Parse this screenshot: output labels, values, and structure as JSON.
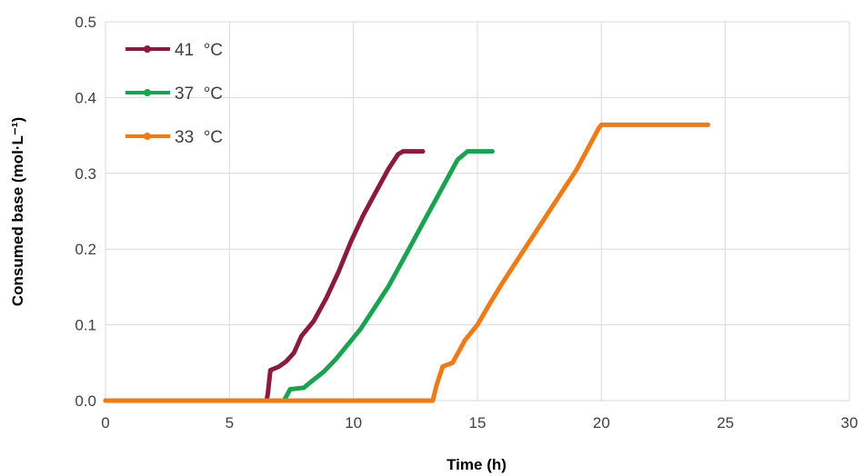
{
  "chart_data": {
    "type": "line",
    "title": "",
    "xlabel": "Time (h)",
    "ylabel": "Consumed base (mol·L⁻¹)",
    "xlim": [
      0,
      30
    ],
    "ylim": [
      0,
      0.5
    ],
    "x_ticks": [
      "0",
      "5",
      "10",
      "15",
      "20",
      "25",
      "30"
    ],
    "y_ticks": [
      "0.0",
      "0.1",
      "0.2",
      "0.3",
      "0.4",
      "0.5"
    ],
    "grid": true,
    "legend_position": "top-left",
    "series": [
      {
        "name": "41  °C",
        "color": "#8B1A3C",
        "points": [
          [
            0,
            0
          ],
          [
            6.5,
            0
          ],
          [
            6.55,
            0.01
          ],
          [
            6.65,
            0.04
          ],
          [
            7.0,
            0.045
          ],
          [
            7.3,
            0.052
          ],
          [
            7.6,
            0.063
          ],
          [
            7.9,
            0.085
          ],
          [
            8.4,
            0.105
          ],
          [
            8.9,
            0.135
          ],
          [
            9.4,
            0.17
          ],
          [
            9.9,
            0.21
          ],
          [
            10.4,
            0.245
          ],
          [
            10.9,
            0.275
          ],
          [
            11.4,
            0.305
          ],
          [
            11.8,
            0.325
          ],
          [
            12.0,
            0.329
          ],
          [
            12.8,
            0.329
          ]
        ]
      },
      {
        "name": "37  °C",
        "color": "#19A34E",
        "points": [
          [
            0,
            0
          ],
          [
            7.2,
            0
          ],
          [
            7.45,
            0.015
          ],
          [
            8.0,
            0.017
          ],
          [
            8.3,
            0.025
          ],
          [
            8.8,
            0.038
          ],
          [
            9.3,
            0.055
          ],
          [
            9.8,
            0.075
          ],
          [
            10.3,
            0.095
          ],
          [
            10.8,
            0.12
          ],
          [
            11.4,
            0.15
          ],
          [
            11.9,
            0.18
          ],
          [
            12.4,
            0.21
          ],
          [
            12.9,
            0.24
          ],
          [
            13.4,
            0.27
          ],
          [
            13.9,
            0.3
          ],
          [
            14.2,
            0.318
          ],
          [
            14.6,
            0.329
          ],
          [
            15.6,
            0.329
          ]
        ]
      },
      {
        "name": "33  °C",
        "color": "#F07A16",
        "points": [
          [
            0,
            0
          ],
          [
            13.2,
            0
          ],
          [
            13.35,
            0.02
          ],
          [
            13.6,
            0.045
          ],
          [
            14.0,
            0.05
          ],
          [
            14.5,
            0.08
          ],
          [
            15.0,
            0.1
          ],
          [
            15.5,
            0.128
          ],
          [
            16.0,
            0.155
          ],
          [
            17.0,
            0.205
          ],
          [
            18.0,
            0.255
          ],
          [
            19.0,
            0.305
          ],
          [
            19.9,
            0.36
          ],
          [
            20.0,
            0.364
          ],
          [
            24.3,
            0.364
          ]
        ]
      }
    ]
  }
}
